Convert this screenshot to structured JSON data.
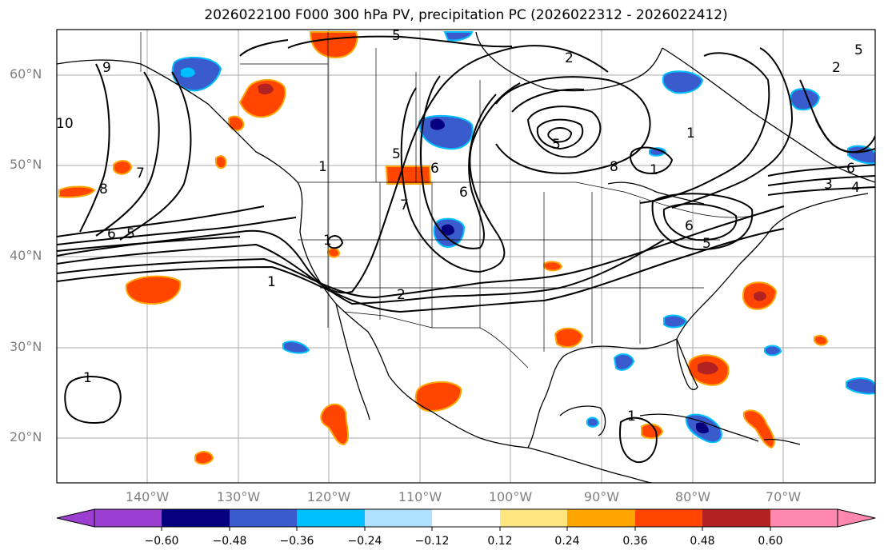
{
  "title": "2026022100 F000 300 hPa PV, precipitation PC (2026022312 - 2026022412)",
  "lat_labels": [
    "60°N",
    "50°N",
    "40°N",
    "30°N",
    "20°N"
  ],
  "lon_labels": [
    "140°W",
    "130°W",
    "120°W",
    "110°W",
    "100°W",
    "90°W",
    "80°W",
    "70°W"
  ],
  "colorbar": {
    "ticks": [
      "−0.60",
      "−0.48",
      "−0.36",
      "−0.24",
      "−0.12",
      "0.12",
      "0.24",
      "0.36",
      "0.48",
      "0.60"
    ],
    "colors": [
      "#9b3fd1",
      "#07007e",
      "#3a5bcc",
      "#00bfff",
      "#b0e0ff",
      "#ffffff",
      "#ffe680",
      "#ffa500",
      "#ff4500",
      "#b22222",
      "#ff88b0"
    ]
  },
  "pv_contour_labels": [
    "5",
    "2",
    "1",
    "6",
    "9",
    "10",
    "7",
    "8",
    "6",
    "5",
    "1",
    "5",
    "6",
    "7",
    "1",
    "2",
    "5",
    "1",
    "6",
    "5",
    "4",
    "3",
    "5",
    "1",
    "1",
    "6",
    "8",
    "2",
    "1"
  ]
}
